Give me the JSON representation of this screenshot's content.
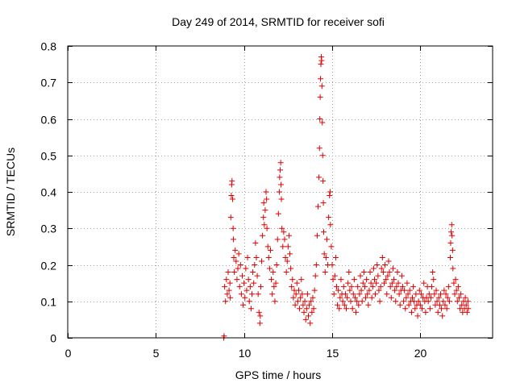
{
  "chart_data": {
    "type": "scatter",
    "title": "Day 249 of 2014, SRMTID for receiver sofi",
    "xlabel": "GPS time / hours",
    "ylabel": "SRMTID / TECUs",
    "xlim": [
      0,
      24.1
    ],
    "ylim": [
      0,
      0.8
    ],
    "xticks": [
      0,
      5,
      10,
      15,
      20
    ],
    "xtick_labels": [
      "0",
      "5",
      "10",
      "15",
      "20"
    ],
    "yticks": [
      0,
      0.1,
      0.2,
      0.3,
      0.4,
      0.5,
      0.6,
      0.7,
      0.8
    ],
    "ytick_labels": [
      "0",
      "0.1",
      "0.2",
      "0.3",
      "0.4",
      "0.5",
      "0.6",
      "0.7",
      "0.8"
    ],
    "grid": true,
    "marker": "+",
    "marker_color": "#e00000",
    "series": [
      {
        "name": "SRMTID",
        "points": [
          [
            8.85,
            0.0
          ],
          [
            8.87,
            0.005
          ],
          [
            8.9,
            0.14
          ],
          [
            8.95,
            0.1
          ],
          [
            9.0,
            0.16
          ],
          [
            9.05,
            0.12
          ],
          [
            9.1,
            0.18
          ],
          [
            9.15,
            0.13
          ],
          [
            9.2,
            0.15
          ],
          [
            9.22,
            0.11
          ],
          [
            9.25,
            0.33
          ],
          [
            9.28,
            0.39
          ],
          [
            9.3,
            0.42
          ],
          [
            9.32,
            0.43
          ],
          [
            9.35,
            0.38
          ],
          [
            9.38,
            0.3
          ],
          [
            9.4,
            0.27
          ],
          [
            9.42,
            0.22
          ],
          [
            9.45,
            0.18
          ],
          [
            9.5,
            0.24
          ],
          [
            9.55,
            0.21
          ],
          [
            9.6,
            0.16
          ],
          [
            9.65,
            0.19
          ],
          [
            9.7,
            0.23
          ],
          [
            9.75,
            0.14
          ],
          [
            9.8,
            0.2
          ],
          [
            9.85,
            0.12
          ],
          [
            9.9,
            0.17
          ],
          [
            9.95,
            0.09
          ],
          [
            10.0,
            0.15
          ],
          [
            10.05,
            0.11
          ],
          [
            10.1,
            0.19
          ],
          [
            10.15,
            0.13
          ],
          [
            10.2,
            0.22
          ],
          [
            10.25,
            0.16
          ],
          [
            10.3,
            0.1
          ],
          [
            10.35,
            0.14
          ],
          [
            10.4,
            0.08
          ],
          [
            10.45,
            0.12
          ],
          [
            10.5,
            0.18
          ],
          [
            10.55,
            0.15
          ],
          [
            10.6,
            0.2
          ],
          [
            10.65,
            0.26
          ],
          [
            10.7,
            0.22
          ],
          [
            10.75,
            0.17
          ],
          [
            10.8,
            0.12
          ],
          [
            10.85,
            0.07
          ],
          [
            10.9,
            0.04
          ],
          [
            10.92,
            0.06
          ],
          [
            10.95,
            0.14
          ],
          [
            11.0,
            0.21
          ],
          [
            11.05,
            0.28
          ],
          [
            11.1,
            0.33
          ],
          [
            11.12,
            0.37
          ],
          [
            11.15,
            0.31
          ],
          [
            11.2,
            0.35
          ],
          [
            11.25,
            0.4
          ],
          [
            11.28,
            0.38
          ],
          [
            11.3,
            0.3
          ],
          [
            11.35,
            0.25
          ],
          [
            11.4,
            0.22
          ],
          [
            11.45,
            0.19
          ],
          [
            11.5,
            0.24
          ],
          [
            11.55,
            0.16
          ],
          [
            11.6,
            0.12
          ],
          [
            11.65,
            0.18
          ],
          [
            11.7,
            0.14
          ],
          [
            11.75,
            0.1
          ],
          [
            11.8,
            0.15
          ],
          [
            11.85,
            0.2
          ],
          [
            11.9,
            0.27
          ],
          [
            11.95,
            0.34
          ],
          [
            12.0,
            0.4
          ],
          [
            12.02,
            0.44
          ],
          [
            12.05,
            0.46
          ],
          [
            12.08,
            0.48
          ],
          [
            12.1,
            0.42
          ],
          [
            12.12,
            0.38
          ],
          [
            12.15,
            0.3
          ],
          [
            12.2,
            0.25
          ],
          [
            12.25,
            0.29
          ],
          [
            12.3,
            0.27
          ],
          [
            12.35,
            0.22
          ],
          [
            12.4,
            0.18
          ],
          [
            12.45,
            0.21
          ],
          [
            12.5,
            0.25
          ],
          [
            12.55,
            0.28
          ],
          [
            12.6,
            0.23
          ],
          [
            12.65,
            0.19
          ],
          [
            12.7,
            0.14
          ],
          [
            12.75,
            0.16
          ],
          [
            12.8,
            0.11
          ],
          [
            12.85,
            0.13
          ],
          [
            12.9,
            0.09
          ],
          [
            12.95,
            0.12
          ],
          [
            13.0,
            0.15
          ],
          [
            13.05,
            0.1
          ],
          [
            13.1,
            0.13
          ],
          [
            13.15,
            0.08
          ],
          [
            13.2,
            0.11
          ],
          [
            13.25,
            0.16
          ],
          [
            13.3,
            0.12
          ],
          [
            13.35,
            0.09
          ],
          [
            13.4,
            0.07
          ],
          [
            13.45,
            0.1
          ],
          [
            13.5,
            0.05
          ],
          [
            13.55,
            0.08
          ],
          [
            13.6,
            0.12
          ],
          [
            13.65,
            0.06
          ],
          [
            13.7,
            0.09
          ],
          [
            13.75,
            0.04
          ],
          [
            13.8,
            0.1
          ],
          [
            13.85,
            0.07
          ],
          [
            13.9,
            0.11
          ],
          [
            13.95,
            0.08
          ],
          [
            14.0,
            0.13
          ],
          [
            14.05,
            0.17
          ],
          [
            14.1,
            0.2
          ],
          [
            14.15,
            0.28
          ],
          [
            14.2,
            0.36
          ],
          [
            14.25,
            0.44
          ],
          [
            14.28,
            0.52
          ],
          [
            14.3,
            0.6
          ],
          [
            14.32,
            0.66
          ],
          [
            14.34,
            0.71
          ],
          [
            14.36,
            0.75
          ],
          [
            14.38,
            0.77
          ],
          [
            14.4,
            0.76
          ],
          [
            14.42,
            0.69
          ],
          [
            14.44,
            0.59
          ],
          [
            14.46,
            0.5
          ],
          [
            14.48,
            0.43
          ],
          [
            14.5,
            0.37
          ],
          [
            14.52,
            0.29
          ],
          [
            14.55,
            0.23
          ],
          [
            14.6,
            0.18
          ],
          [
            14.65,
            0.22
          ],
          [
            14.7,
            0.27
          ],
          [
            14.75,
            0.2
          ],
          [
            14.8,
            0.33
          ],
          [
            14.85,
            0.39
          ],
          [
            14.88,
            0.4
          ],
          [
            14.9,
            0.31
          ],
          [
            14.95,
            0.25
          ],
          [
            15.0,
            0.2
          ],
          [
            15.05,
            0.16
          ],
          [
            15.1,
            0.12
          ],
          [
            15.15,
            0.17
          ],
          [
            15.2,
            0.22
          ],
          [
            15.25,
            0.14
          ],
          [
            15.3,
            0.09
          ],
          [
            15.35,
            0.13
          ],
          [
            15.4,
            0.08
          ],
          [
            15.45,
            0.11
          ],
          [
            15.5,
            0.16
          ],
          [
            15.55,
            0.12
          ],
          [
            15.6,
            0.1
          ],
          [
            15.65,
            0.14
          ],
          [
            15.7,
            0.09
          ],
          [
            15.75,
            0.12
          ],
          [
            15.8,
            0.08
          ],
          [
            15.85,
            0.11
          ],
          [
            15.9,
            0.15
          ],
          [
            15.95,
            0.18
          ],
          [
            16.0,
            0.13
          ],
          [
            16.05,
            0.1
          ],
          [
            16.1,
            0.14
          ],
          [
            16.15,
            0.08
          ],
          [
            16.2,
            0.12
          ],
          [
            16.25,
            0.16
          ],
          [
            16.3,
            0.11
          ],
          [
            16.35,
            0.07
          ],
          [
            16.4,
            0.1
          ],
          [
            16.45,
            0.14
          ],
          [
            16.5,
            0.09
          ],
          [
            16.55,
            0.12
          ],
          [
            16.6,
            0.17
          ],
          [
            16.65,
            0.13
          ],
          [
            16.7,
            0.1
          ],
          [
            16.75,
            0.15
          ],
          [
            16.8,
            0.18
          ],
          [
            16.85,
            0.14
          ],
          [
            16.9,
            0.11
          ],
          [
            16.95,
            0.16
          ],
          [
            17.0,
            0.12
          ],
          [
            17.05,
            0.09
          ],
          [
            17.1,
            0.13
          ],
          [
            17.15,
            0.18
          ],
          [
            17.2,
            0.15
          ],
          [
            17.25,
            0.11
          ],
          [
            17.3,
            0.14
          ],
          [
            17.35,
            0.19
          ],
          [
            17.4,
            0.16
          ],
          [
            17.45,
            0.12
          ],
          [
            17.5,
            0.15
          ],
          [
            17.55,
            0.2
          ],
          [
            17.6,
            0.17
          ],
          [
            17.65,
            0.13
          ],
          [
            17.7,
            0.1
          ],
          [
            17.75,
            0.14
          ],
          [
            17.8,
            0.19
          ],
          [
            17.85,
            0.22
          ],
          [
            17.9,
            0.18
          ],
          [
            17.95,
            0.15
          ],
          [
            18.0,
            0.2
          ],
          [
            18.05,
            0.16
          ],
          [
            18.1,
            0.12
          ],
          [
            18.15,
            0.17
          ],
          [
            18.2,
            0.21
          ],
          [
            18.25,
            0.18
          ],
          [
            18.3,
            0.14
          ],
          [
            18.35,
            0.11
          ],
          [
            18.4,
            0.15
          ],
          [
            18.45,
            0.19
          ],
          [
            18.5,
            0.16
          ],
          [
            18.55,
            0.13
          ],
          [
            18.6,
            0.1
          ],
          [
            18.65,
            0.14
          ],
          [
            18.7,
            0.18
          ],
          [
            18.75,
            0.15
          ],
          [
            18.8,
            0.12
          ],
          [
            18.85,
            0.09
          ],
          [
            18.9,
            0.13
          ],
          [
            18.95,
            0.17
          ],
          [
            19.0,
            0.14
          ],
          [
            19.05,
            0.1
          ],
          [
            19.1,
            0.13
          ],
          [
            19.15,
            0.08
          ],
          [
            19.2,
            0.11
          ],
          [
            19.25,
            0.15
          ],
          [
            19.3,
            0.12
          ],
          [
            19.35,
            0.09
          ],
          [
            19.4,
            0.13
          ],
          [
            19.45,
            0.1
          ],
          [
            19.5,
            0.07
          ],
          [
            19.55,
            0.11
          ],
          [
            19.6,
            0.14
          ],
          [
            19.65,
            0.1
          ],
          [
            19.7,
            0.08
          ],
          [
            19.75,
            0.12
          ],
          [
            19.8,
            0.09
          ],
          [
            19.85,
            0.06
          ],
          [
            19.9,
            0.1
          ],
          [
            19.95,
            0.13
          ],
          [
            20.0,
            0.09
          ],
          [
            20.05,
            0.12
          ],
          [
            20.1,
            0.08
          ],
          [
            20.15,
            0.11
          ],
          [
            20.2,
            0.15
          ],
          [
            20.25,
            0.1
          ],
          [
            20.3,
            0.07
          ],
          [
            20.35,
            0.11
          ],
          [
            20.4,
            0.14
          ],
          [
            20.45,
            0.1
          ],
          [
            20.5,
            0.12
          ],
          [
            20.55,
            0.08
          ],
          [
            20.6,
            0.11
          ],
          [
            20.65,
            0.14
          ],
          [
            20.7,
            0.18
          ],
          [
            20.75,
            0.16
          ],
          [
            20.8,
            0.12
          ],
          [
            20.85,
            0.09
          ],
          [
            20.9,
            0.13
          ],
          [
            20.95,
            0.1
          ],
          [
            21.0,
            0.07
          ],
          [
            21.05,
            0.11
          ],
          [
            21.1,
            0.09
          ],
          [
            21.15,
            0.12
          ],
          [
            21.2,
            0.08
          ],
          [
            21.25,
            0.06
          ],
          [
            21.3,
            0.1
          ],
          [
            21.35,
            0.13
          ],
          [
            21.4,
            0.09
          ],
          [
            21.45,
            0.12
          ],
          [
            21.5,
            0.08
          ],
          [
            21.55,
            0.11
          ],
          [
            21.6,
            0.14
          ],
          [
            21.65,
            0.1
          ],
          [
            21.7,
            0.22
          ],
          [
            21.72,
            0.26
          ],
          [
            21.75,
            0.29
          ],
          [
            21.78,
            0.31
          ],
          [
            21.8,
            0.28
          ],
          [
            21.83,
            0.24
          ],
          [
            21.85,
            0.19
          ],
          [
            21.9,
            0.15
          ],
          [
            21.95,
            0.12
          ],
          [
            22.0,
            0.16
          ],
          [
            22.05,
            0.13
          ],
          [
            22.1,
            0.1
          ],
          [
            22.15,
            0.14
          ],
          [
            22.2,
            0.11
          ],
          [
            22.25,
            0.08
          ],
          [
            22.3,
            0.12
          ],
          [
            22.35,
            0.09
          ],
          [
            22.4,
            0.07
          ],
          [
            22.45,
            0.1
          ],
          [
            22.5,
            0.08
          ],
          [
            22.55,
            0.11
          ],
          [
            22.6,
            0.09
          ],
          [
            22.65,
            0.07
          ],
          [
            22.7,
            0.1
          ],
          [
            22.72,
            0.08
          ]
        ]
      }
    ]
  }
}
